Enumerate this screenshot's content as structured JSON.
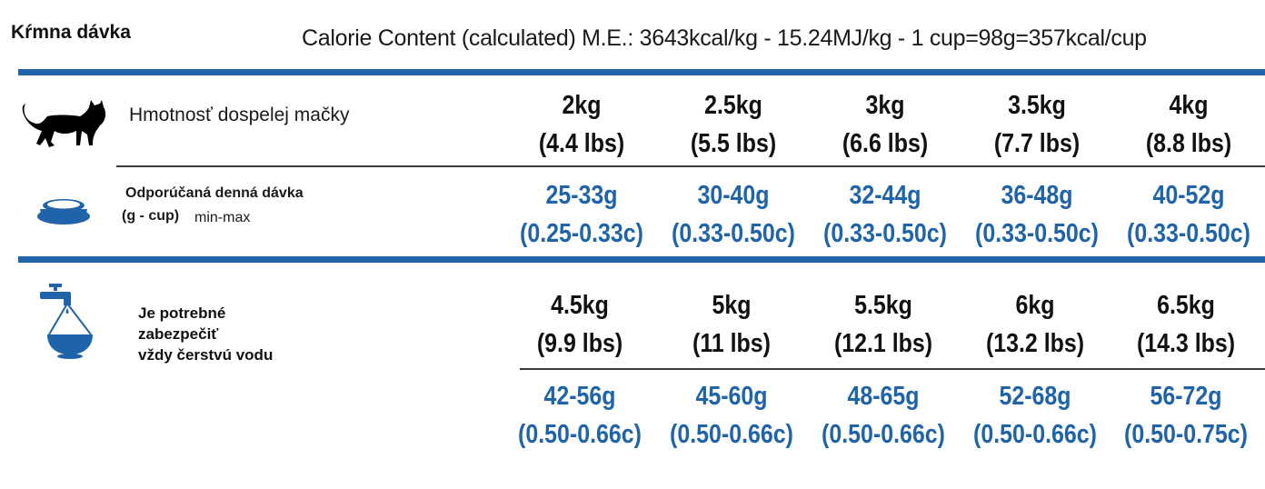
{
  "title": "Kŕmna dávka",
  "calorie_content": "Calorie Content (calculated) M.E.: 3643kcal/kg - 15.24MJ/kg - 1 cup=98g=357kcal/cup",
  "labels": {
    "weight": "Hmotnosť dospelej mačky",
    "daily_line1": "Odporúčaná denná dávka",
    "daily_line2": "(g - cup)",
    "daily_minmax": "min-max",
    "water_line1": "Je potrebné",
    "water_line2": "zabezpečiť",
    "water_line3": "vždy čerstvú vodu"
  },
  "icons": {
    "cat": "cat-icon",
    "bowl": "food-bowl-icon",
    "water": "water-tap-bowl-icon"
  },
  "colors": {
    "accent": "#1f63a8",
    "text": "#111111"
  },
  "table1": {
    "weights": [
      {
        "kg": "2kg",
        "lbs": "(4.4 lbs)"
      },
      {
        "kg": "2.5kg",
        "lbs": "(5.5 lbs)"
      },
      {
        "kg": "3kg",
        "lbs": "(6.6 lbs)"
      },
      {
        "kg": "3.5kg",
        "lbs": "(7.7 lbs)"
      },
      {
        "kg": "4kg",
        "lbs": "(8.8 lbs)"
      }
    ],
    "rations": [
      {
        "g": "25-33g",
        "cup": "(0.25-0.33c)"
      },
      {
        "g": "30-40g",
        "cup": "(0.33-0.50c)"
      },
      {
        "g": "32-44g",
        "cup": "(0.33-0.50c)"
      },
      {
        "g": "36-48g",
        "cup": "(0.33-0.50c)"
      },
      {
        "g": "40-52g",
        "cup": "(0.33-0.50c)"
      }
    ]
  },
  "table2": {
    "weights": [
      {
        "kg": "4.5kg",
        "lbs": "(9.9 lbs)"
      },
      {
        "kg": "5kg",
        "lbs": "(11 lbs)"
      },
      {
        "kg": "5.5kg",
        "lbs": "(12.1 lbs)"
      },
      {
        "kg": "6kg",
        "lbs": "(13.2 lbs)"
      },
      {
        "kg": "6.5kg",
        "lbs": "(14.3 lbs)"
      }
    ],
    "rations": [
      {
        "g": "42-56g",
        "cup": "(0.50-0.66c)"
      },
      {
        "g": "45-60g",
        "cup": "(0.50-0.66c)"
      },
      {
        "g": "48-65g",
        "cup": "(0.50-0.66c)"
      },
      {
        "g": "52-68g",
        "cup": "(0.50-0.66c)"
      },
      {
        "g": "56-72g",
        "cup": "(0.50-0.75c)"
      }
    ]
  }
}
